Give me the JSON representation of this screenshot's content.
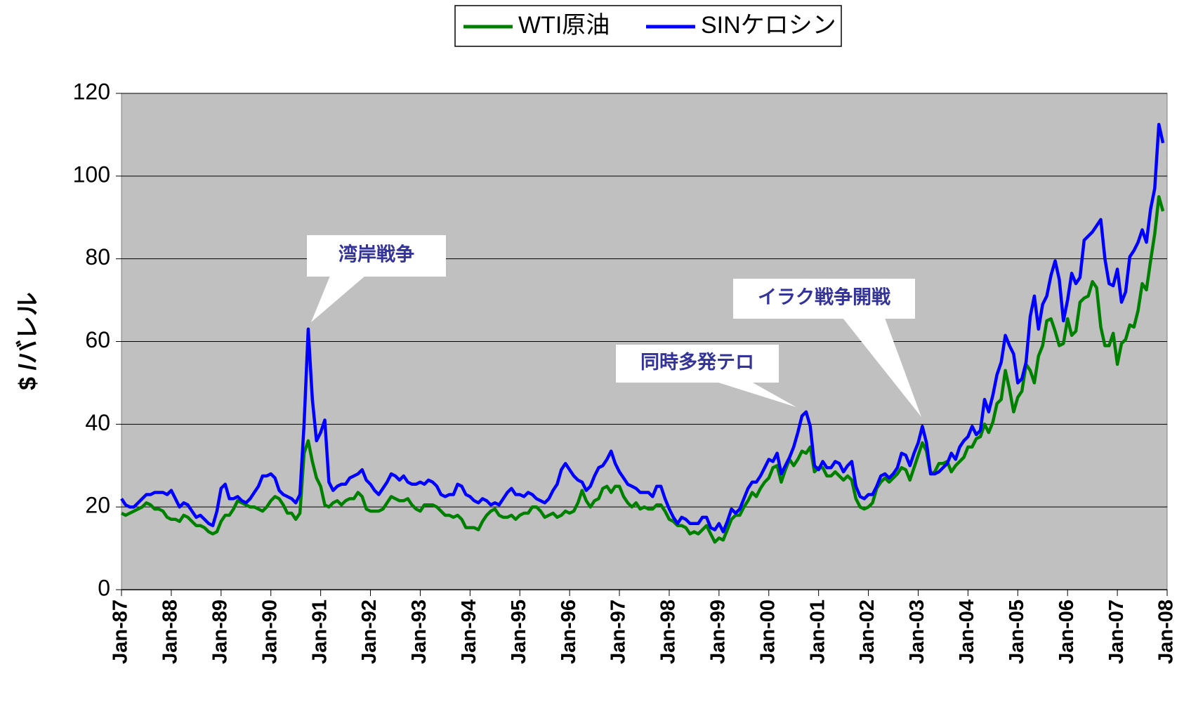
{
  "chart_data": {
    "type": "line",
    "y_label": "$ /バレル",
    "annotations": [
      "湾岸戦争",
      "同時多発テロ",
      "イラク戦争開戦"
    ],
    "categories": [
      "Jan-87",
      null,
      null,
      null,
      null,
      null,
      null,
      null,
      null,
      null,
      null,
      null,
      "Jan-88",
      null,
      null,
      null,
      null,
      null,
      null,
      null,
      null,
      null,
      null,
      null,
      "Jan-89",
      null,
      null,
      null,
      null,
      null,
      null,
      null,
      null,
      null,
      null,
      null,
      "Jan-90",
      null,
      null,
      null,
      null,
      null,
      null,
      null,
      null,
      null,
      null,
      null,
      "Jan-91",
      null,
      null,
      null,
      null,
      null,
      null,
      null,
      null,
      null,
      null,
      null,
      "Jan-92",
      null,
      null,
      null,
      null,
      null,
      null,
      null,
      null,
      null,
      null,
      null,
      "Jan-93",
      null,
      null,
      null,
      null,
      null,
      null,
      null,
      null,
      null,
      null,
      null,
      "Jan-94",
      null,
      null,
      null,
      null,
      null,
      null,
      null,
      null,
      null,
      null,
      null,
      "Jan-95",
      null,
      null,
      null,
      null,
      null,
      null,
      null,
      null,
      null,
      null,
      null,
      "Jan-96",
      null,
      null,
      null,
      null,
      null,
      null,
      null,
      null,
      null,
      null,
      null,
      "Jan-97",
      null,
      null,
      null,
      null,
      null,
      null,
      null,
      null,
      null,
      null,
      null,
      "Jan-98",
      null,
      null,
      null,
      null,
      null,
      null,
      null,
      null,
      null,
      null,
      null,
      "Jan-99",
      null,
      null,
      null,
      null,
      null,
      null,
      null,
      null,
      null,
      null,
      null,
      "Jan-00",
      null,
      null,
      null,
      null,
      null,
      null,
      null,
      null,
      null,
      null,
      null,
      "Jan-01",
      null,
      null,
      null,
      null,
      null,
      null,
      null,
      null,
      null,
      null,
      null,
      "Jan-02",
      null,
      null,
      null,
      null,
      null,
      null,
      null,
      null,
      null,
      null,
      null,
      "Jan-03",
      null,
      null,
      null,
      null,
      null,
      null,
      null,
      null,
      null,
      null,
      null,
      "Jan-04",
      null,
      null,
      null,
      null,
      null,
      null,
      null,
      null,
      null,
      null,
      null,
      "Jan-05",
      null,
      null,
      null,
      null,
      null,
      null,
      null,
      null,
      null,
      null,
      null,
      "Jan-06",
      null,
      null,
      null,
      null,
      null,
      null,
      null,
      null,
      null,
      null,
      null,
      "Jan-07",
      null,
      null,
      null,
      null,
      null,
      null,
      null,
      null,
      null,
      null,
      null,
      "Jan-08"
    ],
    "series": [
      {
        "name": "WTI原油",
        "color": "#008000",
        "values": [
          18.5,
          18,
          18.5,
          19,
          19.5,
          20,
          21,
          20.5,
          19.5,
          19.5,
          19,
          17.5,
          17,
          17,
          16.5,
          18,
          17.5,
          16.5,
          15.5,
          15.5,
          15,
          14,
          13.5,
          14,
          16.5,
          18,
          18,
          19.5,
          21.5,
          21,
          20.5,
          20,
          20,
          19.5,
          19,
          20,
          21.5,
          22.5,
          22,
          20.5,
          18.5,
          18.5,
          17,
          18.5,
          33,
          36,
          31,
          27,
          25,
          20.5,
          20,
          21,
          21.5,
          20.5,
          21.5,
          22,
          22,
          23.5,
          22.5,
          19.5,
          19,
          19,
          19,
          19.5,
          21,
          22.5,
          22,
          21.5,
          21.5,
          22,
          20.5,
          19.5,
          19,
          20.5,
          20.5,
          20.5,
          20,
          19,
          18,
          18,
          17.5,
          18,
          17,
          15,
          15,
          15,
          14.5,
          16.5,
          18,
          19,
          19.5,
          18,
          17.5,
          17.5,
          18,
          17,
          18,
          18.5,
          18.5,
          20,
          20,
          19,
          17.5,
          18,
          18.5,
          17.5,
          18,
          19,
          18.5,
          19,
          21,
          24,
          21.5,
          20,
          21.5,
          22,
          24.5,
          25,
          23.5,
          25,
          25,
          22.5,
          21,
          20,
          21,
          19.5,
          20,
          19.5,
          19.5,
          20.5,
          20.5,
          19,
          17,
          16.5,
          15.5,
          15.5,
          15,
          13.5,
          14,
          13.5,
          14.5,
          15.5,
          13.5,
          11.5,
          12.5,
          12,
          14.5,
          17,
          18,
          18,
          20,
          21.5,
          23.5,
          22.5,
          24.5,
          26,
          27,
          29.5,
          30,
          26,
          29,
          31.5,
          30,
          31.5,
          33.5,
          33,
          34.5,
          28.5,
          29.5,
          29.5,
          27.5,
          27.5,
          28.5,
          27.5,
          26.5,
          27.5,
          26.5,
          22,
          20,
          19.5,
          20,
          21,
          24.5,
          26,
          27,
          26,
          27,
          28,
          29.5,
          29,
          26.5,
          29.5,
          32.5,
          35.5,
          33.5,
          28,
          28.5,
          30.5,
          30.5,
          31,
          28.5,
          30,
          31,
          32,
          34.5,
          34.5,
          36.5,
          37,
          40,
          38,
          40.5,
          45,
          46,
          53,
          48.5,
          43,
          46.5,
          48,
          54.5,
          53,
          50,
          56.5,
          59,
          65,
          65.5,
          62.5,
          59,
          59.5,
          65.5,
          61.5,
          62.5,
          69.5,
          70.5,
          71,
          74.5,
          73,
          63.5,
          59,
          59,
          62,
          54.5,
          59.5,
          60.5,
          64,
          63.5,
          67.5,
          74,
          72.5,
          79.5,
          86,
          95,
          91.5,
          null
        ]
      },
      {
        "name": "SINケロシン",
        "color": "#0000ff",
        "values": [
          22,
          20.5,
          20,
          20,
          21,
          22,
          23,
          23,
          23.5,
          23.5,
          23.5,
          23,
          24,
          22,
          20,
          21,
          20.5,
          19,
          17.5,
          18,
          17,
          16,
          15.5,
          19,
          24.5,
          25.5,
          22,
          22,
          22.5,
          21.5,
          21,
          22,
          23.5,
          25,
          27.5,
          27.5,
          28,
          27,
          24,
          23,
          22.5,
          22,
          21,
          23,
          40,
          63,
          46,
          36,
          38,
          41,
          26,
          24,
          25,
          25.5,
          25.5,
          27,
          27.5,
          28,
          29,
          26.5,
          25.5,
          24,
          23,
          24.5,
          26,
          28,
          27.5,
          26.5,
          27.5,
          26,
          25.5,
          25.5,
          26,
          25.5,
          26.5,
          26,
          25,
          23,
          22.5,
          23,
          23,
          25.5,
          25,
          23,
          22.5,
          21.5,
          21,
          22,
          21.5,
          20.5,
          21,
          20.5,
          22,
          23.5,
          24.5,
          23,
          23,
          22.5,
          23.5,
          23,
          22,
          21.5,
          21,
          22,
          24,
          25.5,
          29,
          30.5,
          29,
          27.5,
          26.5,
          26,
          24,
          25,
          27.5,
          29.5,
          30,
          31.5,
          33.5,
          30.5,
          28.5,
          27,
          25.5,
          25,
          24.5,
          23.5,
          23.5,
          23.5,
          22.5,
          25,
          25,
          22,
          19.5,
          17.5,
          16,
          17.5,
          17,
          16,
          16,
          16,
          17.5,
          17.5,
          15,
          14.5,
          16,
          14,
          16.5,
          19.5,
          18.5,
          19.5,
          22,
          24.5,
          26,
          26,
          27.5,
          29.5,
          31.5,
          31,
          33,
          28,
          30,
          32,
          34.5,
          38,
          42,
          43,
          39.5,
          30,
          29,
          31,
          29.5,
          29.5,
          31,
          30.5,
          28.5,
          30,
          31,
          25,
          22.5,
          22,
          23,
          23,
          25,
          27.5,
          28,
          27,
          28,
          29.5,
          33,
          32.5,
          30,
          33,
          35.5,
          39.5,
          35.5,
          28,
          28,
          28.5,
          29.5,
          30.5,
          33,
          31.5,
          34.5,
          36,
          37,
          39.5,
          37.5,
          38.5,
          46,
          43,
          47,
          52,
          55,
          61.5,
          59,
          57,
          50,
          51,
          55,
          66,
          71,
          63,
          69,
          71,
          76,
          79.5,
          75,
          65,
          70,
          76.5,
          74,
          75.5,
          84.5,
          85.5,
          86.5,
          88,
          89.5,
          80,
          74,
          73.5,
          77.5,
          69.5,
          72,
          80.5,
          82,
          84,
          87,
          84,
          92,
          97,
          112.5,
          108,
          null
        ]
      }
    ],
    "ylim": [
      0,
      120
    ],
    "yticks": [
      0,
      20,
      40,
      60,
      80,
      100,
      120
    ],
    "grid": true
  }
}
